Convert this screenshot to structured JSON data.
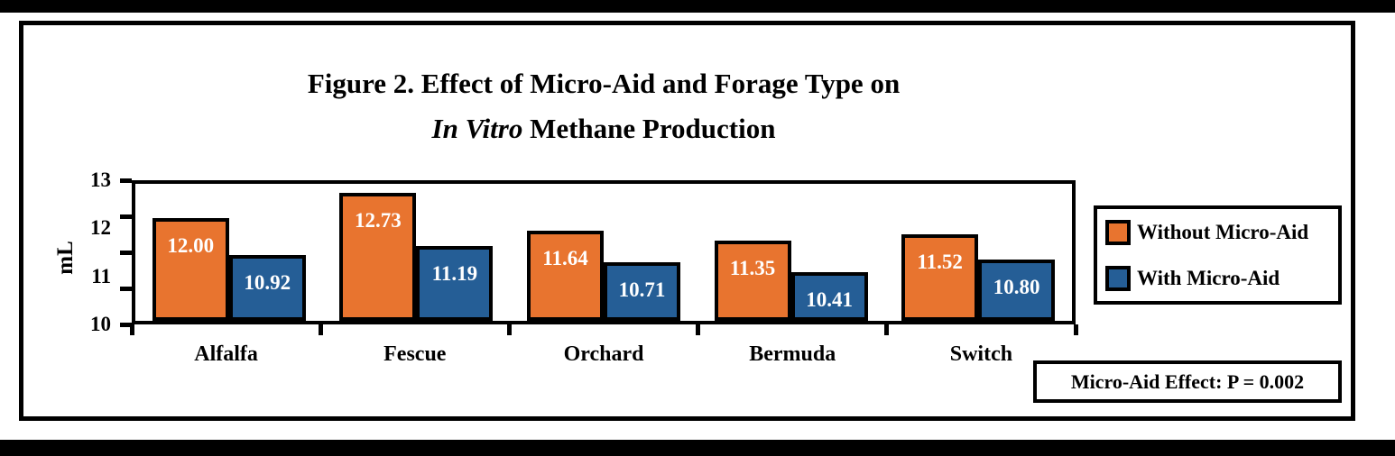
{
  "title": {
    "line1": "Figure 2. Effect of Micro-Aid and Forage Type on",
    "line2_italic": "In Vitro",
    "line2_rest": " Methane Production"
  },
  "chart_data": {
    "type": "bar",
    "title": "Figure 2. Effect of Micro-Aid and Forage Type on In Vitro Methane Production",
    "categories": [
      "Alfalfa",
      "Fescue",
      "Orchard",
      "Bermuda",
      "Switch"
    ],
    "series": [
      {
        "name": "Without Micro-Aid",
        "color": "#E8742F",
        "values": [
          12.0,
          12.73,
          11.64,
          11.35,
          11.52
        ],
        "labels": [
          "12.00",
          "12.73",
          "11.64",
          "11.35",
          "11.52"
        ]
      },
      {
        "name": "With Micro-Aid",
        "color": "#255E96",
        "values": [
          10.92,
          11.19,
          10.71,
          10.41,
          10.8
        ],
        "labels": [
          "10.92",
          "11.19",
          "10.71",
          "10.41",
          "10.80"
        ]
      }
    ],
    "xlabel": "",
    "ylabel": "mL",
    "ylim": [
      10,
      13
    ],
    "yticks": [
      "13",
      "12",
      "11",
      "10"
    ],
    "grid": false,
    "legend_position": "right",
    "value_labels": true,
    "annotation": "Micro-Aid Effect: P = 0.002"
  },
  "colors": {
    "without_micro_aid": "#E8742F",
    "with_micro_aid": "#255E96",
    "bar_border": "#000000",
    "frame": "#000000",
    "background": "#ffffff",
    "value_label_text": "#ffffff"
  }
}
